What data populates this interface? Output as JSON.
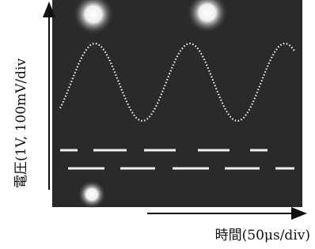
{
  "y_label": "電圧(1V, 100mV/div",
  "x_label": "時間(50μs/div)"
}
